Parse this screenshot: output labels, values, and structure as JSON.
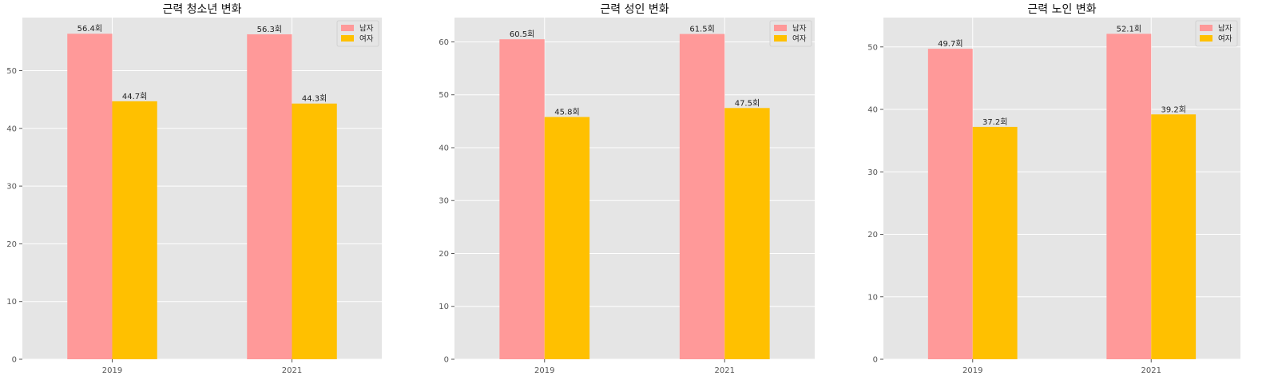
{
  "chart_data": [
    {
      "type": "bar",
      "title": "근력 청소년 변화",
      "categories": [
        "2019",
        "2021"
      ],
      "series": [
        {
          "name": "남자",
          "color": "#ff9999",
          "values": [
            56.4,
            56.3
          ],
          "labels": [
            "56.4회",
            "56.3회"
          ]
        },
        {
          "name": "여자",
          "color": "#ffc000",
          "values": [
            44.7,
            44.3
          ],
          "labels": [
            "44.7회",
            "44.3회"
          ]
        }
      ],
      "yticks": [
        0,
        10,
        20,
        30,
        40,
        50
      ],
      "ylim": [
        0,
        59.2
      ],
      "xlabel": "",
      "ylabel": "",
      "grid": true,
      "legend": "top-right"
    },
    {
      "type": "bar",
      "title": "근력 성인 변화",
      "categories": [
        "2019",
        "2021"
      ],
      "series": [
        {
          "name": "남자",
          "color": "#ff9999",
          "values": [
            60.5,
            61.5
          ],
          "labels": [
            "60.5회",
            "61.5회"
          ]
        },
        {
          "name": "여자",
          "color": "#ffc000",
          "values": [
            45.8,
            47.5
          ],
          "labels": [
            "45.8회",
            "47.5회"
          ]
        }
      ],
      "yticks": [
        0,
        10,
        20,
        30,
        40,
        50,
        60
      ],
      "ylim": [
        0,
        64.6
      ],
      "xlabel": "",
      "ylabel": "",
      "grid": true,
      "legend": "top-right"
    },
    {
      "type": "bar",
      "title": "근력 노인 변화",
      "categories": [
        "2019",
        "2021"
      ],
      "series": [
        {
          "name": "남자",
          "color": "#ff9999",
          "values": [
            49.7,
            52.1
          ],
          "labels": [
            "49.7회",
            "52.1회"
          ]
        },
        {
          "name": "여자",
          "color": "#ffc000",
          "values": [
            37.2,
            39.2
          ],
          "labels": [
            "37.2회",
            "39.2회"
          ]
        }
      ],
      "yticks": [
        0,
        10,
        20,
        30,
        40,
        50
      ],
      "ylim": [
        0,
        54.7
      ],
      "xlabel": "",
      "ylabel": "",
      "grid": true,
      "legend": "top-right"
    }
  ]
}
